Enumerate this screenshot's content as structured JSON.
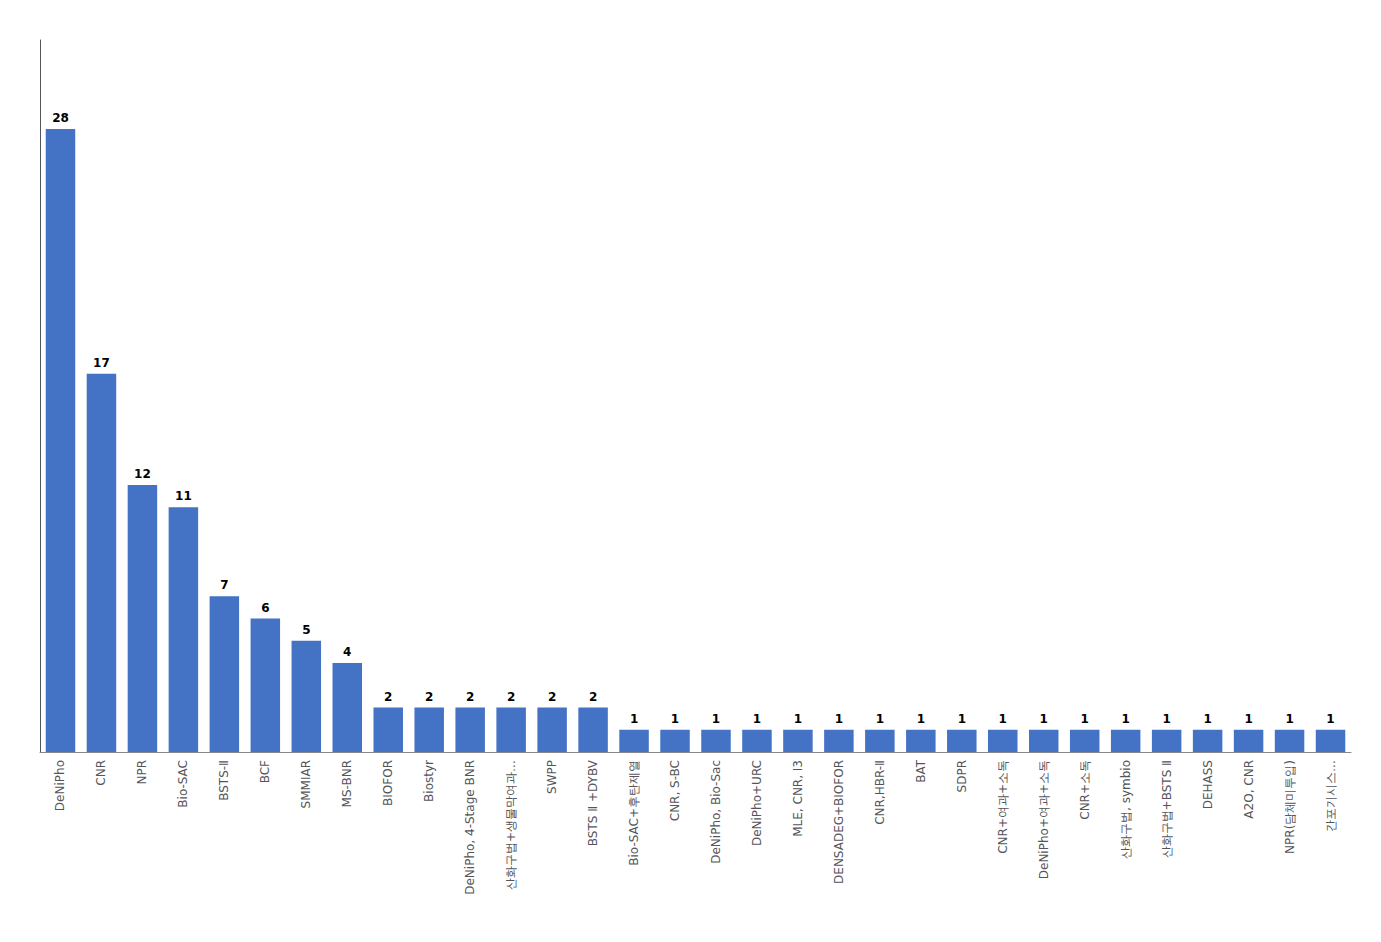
{
  "chart_data": {
    "type": "bar",
    "categories": [
      "DeNiPho",
      "CNR",
      "NPR",
      "Bio-SAC",
      "BSTS-Ⅱ",
      "BCF",
      "SMMIAR",
      "MS-BNR",
      "BIOFOR",
      "Biostyr",
      "DeNiPho, 4-Stage BNR",
      "산화구법+생물막여과…",
      "SWPP",
      "BSTS Ⅱ +DYBV",
      "Bio-SAC+후탄제열",
      "CNR, S-BC",
      "DeNiPho, Bio-Sac",
      "DeNiPho+URC",
      "MLE, CNR, I3",
      "DENSADEG+BIOFOR",
      "CNR,HBR-Ⅱ",
      "BAT",
      "SDPR",
      "CNR+여과+소독",
      "DeNiPho+여과+소독",
      "CNR+소독",
      "산화구법, symbio",
      "산화구법+BSTS Ⅱ",
      "DEHASS",
      "A2O, CNR",
      "NPR(담체미투입)",
      "간포기시스…"
    ],
    "values": [
      28,
      17,
      12,
      11,
      7,
      6,
      5,
      4,
      2,
      2,
      2,
      2,
      2,
      2,
      1,
      1,
      1,
      1,
      1,
      1,
      1,
      1,
      1,
      1,
      1,
      1,
      1,
      1,
      1,
      1,
      1,
      1
    ],
    "color": "#4472C4",
    "ylim": [
      0,
      32
    ],
    "grid": false,
    "data_labels": true,
    "tick_labels": "x"
  }
}
